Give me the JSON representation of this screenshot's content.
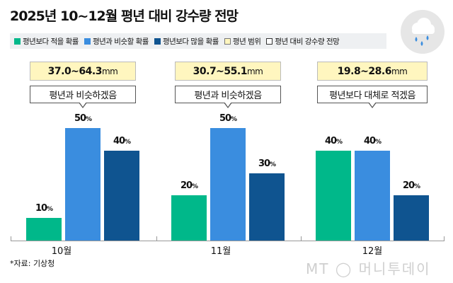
{
  "title": "2025년 10~12월 평년 대비 강수량 전망",
  "legend": [
    {
      "label": "평년보다 적을 확률",
      "color": "#00b88a"
    },
    {
      "label": "평년과 비슷할 확률",
      "color": "#3a8ddf"
    },
    {
      "label": "평년보다 많을 확률",
      "color": "#0f5490"
    },
    {
      "label": "평년 범위",
      "color": "#fff6bf"
    },
    {
      "label": "평년 대비 강수량 전망",
      "color": "#ffffff"
    }
  ],
  "icon": "rain-cloud-icon",
  "chart_data": {
    "type": "bar",
    "categories": [
      "10월",
      "11월",
      "12월"
    ],
    "series": [
      {
        "name": "평년보다 적을 확률",
        "color": "#00b88a",
        "values": [
          10,
          20,
          40
        ]
      },
      {
        "name": "평년과 비슷할 확률",
        "color": "#3a8ddf",
        "values": [
          50,
          50,
          40
        ]
      },
      {
        "name": "평년보다 많을 확률",
        "color": "#0f5490",
        "values": [
          40,
          30,
          20
        ]
      }
    ],
    "unit": "%",
    "ranges": [
      {
        "value": "37.0~64.3",
        "unit": "mm"
      },
      {
        "value": "30.7~55.1",
        "unit": "mm"
      },
      {
        "value": "19.8~28.6",
        "unit": "mm"
      }
    ],
    "outlooks": [
      "평년과 비슷하겠음",
      "평년과 비슷하겠음",
      "평년보다 대체로 적겠음"
    ],
    "ylim": [
      0,
      100
    ]
  },
  "source": "*자료: 기상청",
  "watermark": "MT ◯ 머니투데이"
}
